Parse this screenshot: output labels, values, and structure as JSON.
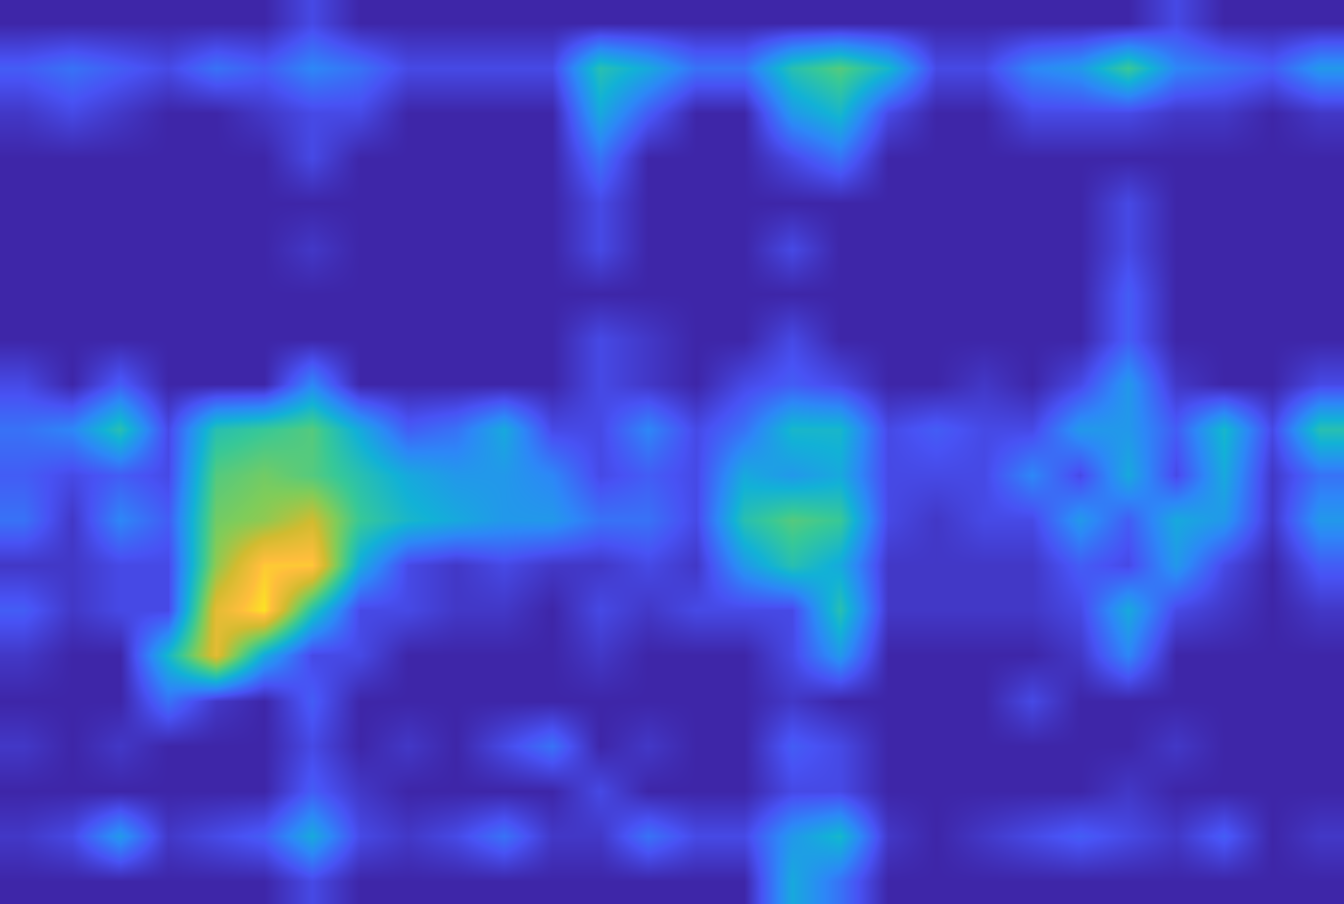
{
  "chart_data": {
    "type": "heatmap",
    "tick_labels": false,
    "xlim": [
      -0.5,
      27.5
    ],
    "ylim": [
      19.5,
      -0.5
    ],
    "zlim": [
      0,
      1
    ],
    "cells": [
      [
        0,
        0,
        0,
        0,
        0,
        0,
        0.1,
        0,
        0,
        0,
        0,
        0,
        0,
        0,
        0,
        0,
        0,
        0,
        0,
        0,
        0,
        0,
        0,
        0,
        0.1,
        0,
        0,
        0
      ],
      [
        0.15,
        0.2,
        0.15,
        0.1,
        0.2,
        0.15,
        0.25,
        0.2,
        0.1,
        0.1,
        0.1,
        0.1,
        0.45,
        0.35,
        0.2,
        0.2,
        0.45,
        0.55,
        0.4,
        0.1,
        0.1,
        0.25,
        0.3,
        0.5,
        0.25,
        0.2,
        0.15,
        0.3
      ],
      [
        0.05,
        0.1,
        0.05,
        0,
        0,
        0.05,
        0.1,
        0.1,
        0,
        0,
        0,
        0,
        0.35,
        0.15,
        0,
        0,
        0.3,
        0.4,
        0.1,
        0,
        0,
        0.1,
        0.1,
        0.1,
        0.05,
        0.05,
        0,
        0.05
      ],
      [
        0,
        0,
        0,
        0,
        0,
        0,
        0.1,
        0,
        0,
        0,
        0,
        0,
        0.2,
        0,
        0,
        0,
        0.1,
        0.2,
        0,
        0,
        0,
        0,
        0,
        0,
        0,
        0,
        0,
        0
      ],
      [
        0,
        0,
        0,
        0,
        0,
        0,
        0,
        0,
        0,
        0,
        0,
        0,
        0.1,
        0,
        0,
        0,
        0,
        0,
        0,
        0,
        0,
        0,
        0,
        0.1,
        0,
        0,
        0,
        0
      ],
      [
        0,
        0,
        0,
        0,
        0,
        0,
        0.05,
        0,
        0,
        0,
        0,
        0,
        0.1,
        0,
        0,
        0,
        0.1,
        0,
        0,
        0,
        0,
        0,
        0,
        0.1,
        0,
        0,
        0,
        0
      ],
      [
        0,
        0,
        0,
        0,
        0,
        0,
        0,
        0,
        0,
        0,
        0,
        0,
        0,
        0,
        0,
        0,
        0,
        0,
        0,
        0,
        0,
        0,
        0,
        0.15,
        0,
        0,
        0,
        0
      ],
      [
        0,
        0,
        0,
        0,
        0,
        0,
        0,
        0,
        0,
        0,
        0,
        0,
        0.1,
        0.05,
        0,
        0,
        0.1,
        0,
        0,
        0,
        0,
        0,
        0,
        0.15,
        0,
        0,
        0,
        0
      ],
      [
        0.1,
        0,
        0.15,
        0,
        0,
        0,
        0.25,
        0,
        0,
        0,
        0,
        0,
        0.1,
        0.05,
        0,
        0.1,
        0.15,
        0.1,
        0,
        0,
        0.05,
        0,
        0.1,
        0.3,
        0.05,
        0,
        0,
        0.1
      ],
      [
        0.2,
        0.25,
        0.45,
        0.1,
        0.45,
        0.5,
        0.55,
        0.35,
        0.15,
        0.2,
        0.35,
        0.1,
        0.1,
        0.25,
        0.1,
        0.2,
        0.4,
        0.4,
        0.1,
        0.15,
        0.1,
        0.1,
        0.3,
        0.3,
        0.15,
        0.4,
        0.1,
        0.45
      ],
      [
        0.15,
        0.1,
        0.15,
        0.1,
        0.55,
        0.6,
        0.55,
        0.45,
        0.35,
        0.3,
        0.3,
        0.25,
        0.1,
        0.15,
        0.1,
        0.35,
        0.3,
        0.35,
        0.1,
        0.1,
        0.1,
        0.25,
        0.1,
        0.35,
        0.1,
        0.35,
        0.05,
        0.2
      ],
      [
        0.2,
        0.05,
        0.25,
        0.15,
        0.6,
        0.65,
        0.75,
        0.5,
        0.4,
        0.35,
        0.3,
        0.3,
        0.2,
        0.2,
        0.1,
        0.45,
        0.55,
        0.5,
        0.1,
        0.05,
        0.1,
        0.1,
        0.3,
        0.15,
        0.35,
        0.3,
        0.05,
        0.3
      ],
      [
        0.05,
        0.05,
        0.1,
        0.1,
        0.65,
        0.9,
        0.9,
        0.35,
        0.1,
        0.05,
        0.1,
        0.05,
        0.05,
        0.1,
        0.05,
        0.3,
        0.45,
        0.35,
        0.05,
        0.05,
        0.05,
        0.05,
        0.15,
        0.1,
        0.3,
        0.1,
        0,
        0.15
      ],
      [
        0.15,
        0.05,
        0.1,
        0.1,
        0.8,
        0.95,
        0.45,
        0.1,
        0.1,
        0.05,
        0.05,
        0,
        0.1,
        0.05,
        0.1,
        0.1,
        0.1,
        0.45,
        0.05,
        0.05,
        0.05,
        0.05,
        0.1,
        0.35,
        0.1,
        0.05,
        0,
        0.05
      ],
      [
        0.05,
        0,
        0,
        0.4,
        0.8,
        0.35,
        0.1,
        0.1,
        0,
        0,
        0,
        0,
        0.05,
        0,
        0,
        0,
        0.1,
        0.3,
        0,
        0,
        0,
        0,
        0.05,
        0.25,
        0,
        0,
        0,
        0
      ],
      [
        0,
        0,
        0,
        0.2,
        0.05,
        0,
        0.15,
        0,
        0,
        0,
        0,
        0,
        0,
        0,
        0,
        0,
        0.05,
        0,
        0,
        0,
        0,
        0.1,
        0,
        0,
        0,
        0,
        0,
        0
      ],
      [
        0.05,
        0,
        0.05,
        0,
        0,
        0,
        0.1,
        0,
        0.05,
        0,
        0.1,
        0.2,
        0,
        0.05,
        0,
        0,
        0.15,
        0.1,
        0,
        0,
        0,
        0,
        0,
        0,
        0.05,
        0,
        0,
        0
      ],
      [
        0,
        0,
        0,
        0,
        0,
        0,
        0.15,
        0.05,
        0,
        0,
        0,
        0,
        0.1,
        0,
        0,
        0,
        0.1,
        0.1,
        0,
        0,
        0,
        0,
        0,
        0.05,
        0,
        0,
        0,
        0
      ],
      [
        0.05,
        0.1,
        0.3,
        0.05,
        0.1,
        0.15,
        0.35,
        0.1,
        0.05,
        0.1,
        0.2,
        0.05,
        0.05,
        0.2,
        0.1,
        0.1,
        0.3,
        0.4,
        0.05,
        0,
        0.05,
        0.1,
        0.15,
        0.1,
        0.05,
        0.15,
        0,
        0.05
      ],
      [
        0,
        0,
        0,
        0,
        0,
        0,
        0.1,
        0,
        0,
        0,
        0,
        0,
        0,
        0,
        0,
        0,
        0.35,
        0.2,
        0,
        0,
        0,
        0,
        0,
        0,
        0,
        0,
        0,
        0
      ]
    ]
  }
}
